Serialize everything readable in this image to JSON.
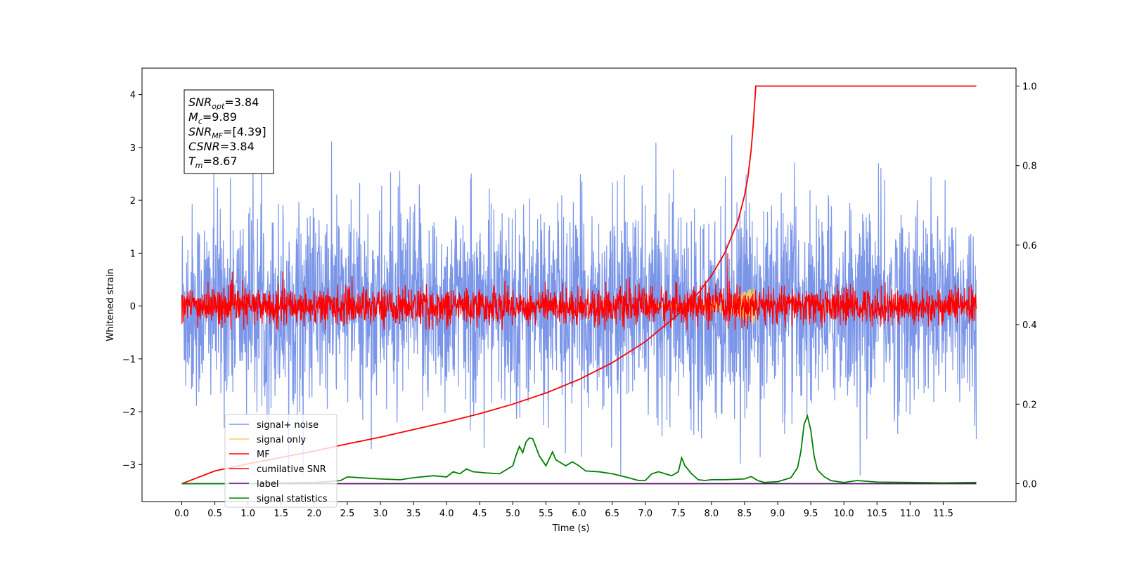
{
  "chart_data": {
    "type": "line",
    "xlabel": "Time (s)",
    "ylabel": "Whitened strain",
    "xlim": [
      -0.6,
      12.6
    ],
    "ylim": [
      -3.7,
      4.5
    ],
    "y2lim": [
      -0.045,
      1.045
    ],
    "x_ticks": [
      "0.0",
      "0.5",
      "1.0",
      "1.5",
      "2.0",
      "2.5",
      "3.0",
      "3.5",
      "4.0",
      "4.5",
      "5.0",
      "5.5",
      "6.0",
      "6.5",
      "7.0",
      "7.5",
      "8.0",
      "8.5",
      "9.0",
      "9.5",
      "10.0",
      "10.5",
      "11.0",
      "11.5"
    ],
    "y_ticks": [
      "−3",
      "−2",
      "−1",
      "0",
      "1",
      "2",
      "3",
      "4"
    ],
    "y2_ticks": [
      "0.0",
      "0.2",
      "0.4",
      "0.6",
      "0.8",
      "1.0"
    ],
    "annotation": [
      {
        "sym": "SNR",
        "sub": "opt",
        "value": "=3.84"
      },
      {
        "sym": "M",
        "sub": "c",
        "value": "=9.89"
      },
      {
        "sym": "SNR",
        "sub": "MF",
        "value": "=[4.39]"
      },
      {
        "sym": "CSNR",
        "sub": "",
        "value": "=3.84"
      },
      {
        "sym": "T",
        "sub": "m",
        "value": "=8.67"
      }
    ],
    "legend_position": "lower-left",
    "series": [
      {
        "name": "signal+ noise",
        "color": "#7b96e8",
        "axis": "left",
        "description": "noise-like, amplitude up to about 4.2, x 0 to 12"
      },
      {
        "name": "signal only",
        "color": "#f5c96a",
        "axis": "left",
        "description": "near zero, small chirp ending at 8.67 s"
      },
      {
        "name": "MF",
        "color": "#ff0000",
        "axis": "left",
        "description": "noise-like, amplitude about 0.4, peaks near 1.0"
      },
      {
        "name": "cumilative SNR",
        "color": "#ff0000",
        "axis": "right",
        "x": [
          0.0,
          0.5,
          1.0,
          1.5,
          2.0,
          2.5,
          3.0,
          3.5,
          4.0,
          4.5,
          5.0,
          5.5,
          6.0,
          6.5,
          7.0,
          7.5,
          7.8,
          8.0,
          8.2,
          8.4,
          8.5,
          8.55,
          8.6,
          8.63,
          8.67,
          9.0,
          10.0,
          11.0,
          12.0
        ],
        "values": [
          0.0,
          0.032,
          0.05,
          0.066,
          0.082,
          0.1,
          0.117,
          0.136,
          0.155,
          0.176,
          0.2,
          0.228,
          0.262,
          0.304,
          0.357,
          0.426,
          0.479,
          0.523,
          0.58,
          0.66,
          0.725,
          0.77,
          0.84,
          0.9,
          1.0,
          1.0,
          1.0,
          1.0,
          1.0
        ]
      },
      {
        "name": "label",
        "color": "#5c0e6e",
        "axis": "right",
        "x": [
          0.0,
          12.0
        ],
        "values": [
          0.0,
          0.0
        ]
      },
      {
        "name": "signal statistics",
        "color": "#008000",
        "axis": "right",
        "x": [
          0.0,
          0.5,
          1.0,
          1.5,
          2.0,
          2.2,
          2.4,
          2.5,
          2.7,
          3.0,
          3.3,
          3.5,
          3.8,
          4.0,
          4.1,
          4.2,
          4.3,
          4.4,
          4.6,
          4.8,
          4.9,
          5.0,
          5.05,
          5.1,
          5.15,
          5.2,
          5.25,
          5.3,
          5.35,
          5.4,
          5.5,
          5.6,
          5.65,
          5.7,
          5.8,
          5.9,
          6.0,
          6.1,
          6.3,
          6.5,
          6.7,
          6.9,
          7.0,
          7.1,
          7.2,
          7.3,
          7.4,
          7.5,
          7.55,
          7.6,
          7.7,
          7.8,
          7.9,
          8.0,
          8.2,
          8.5,
          8.6,
          8.7,
          8.8,
          9.0,
          9.2,
          9.3,
          9.35,
          9.4,
          9.45,
          9.5,
          9.55,
          9.6,
          9.7,
          9.8,
          10.0,
          10.2,
          10.5,
          11.0,
          11.5,
          12.0
        ],
        "values": [
          0.0,
          0.0,
          0.0,
          0.002,
          0.003,
          0.005,
          0.008,
          0.017,
          0.015,
          0.012,
          0.01,
          0.015,
          0.02,
          0.017,
          0.03,
          0.025,
          0.037,
          0.03,
          0.027,
          0.025,
          0.035,
          0.045,
          0.072,
          0.094,
          0.078,
          0.105,
          0.115,
          0.113,
          0.092,
          0.07,
          0.045,
          0.08,
          0.06,
          0.055,
          0.045,
          0.055,
          0.045,
          0.032,
          0.03,
          0.025,
          0.017,
          0.008,
          0.008,
          0.025,
          0.03,
          0.025,
          0.02,
          0.03,
          0.065,
          0.045,
          0.025,
          0.01,
          0.008,
          0.01,
          0.01,
          0.012,
          0.018,
          0.008,
          0.003,
          0.005,
          0.015,
          0.04,
          0.08,
          0.15,
          0.17,
          0.135,
          0.07,
          0.035,
          0.018,
          0.008,
          0.003,
          0.008,
          0.004,
          0.003,
          0.002,
          0.003
        ]
      }
    ]
  }
}
